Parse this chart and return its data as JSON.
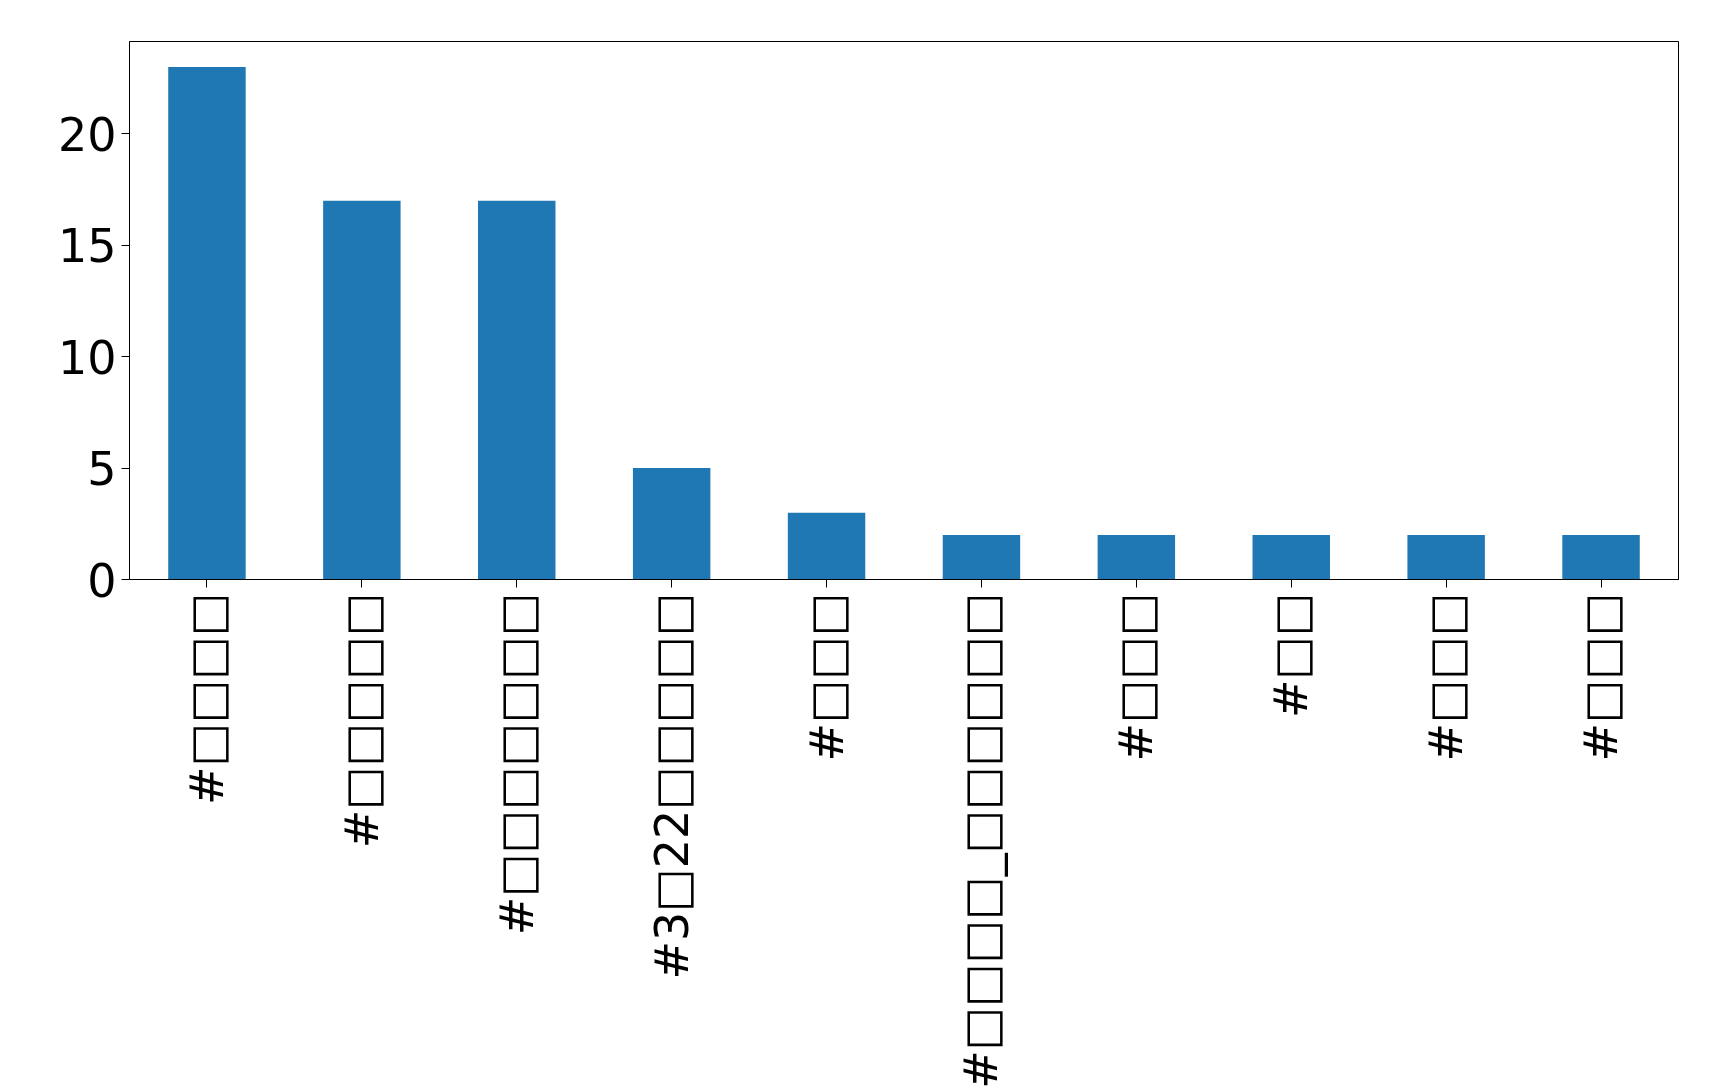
{
  "chart_data": {
    "type": "bar",
    "categories": [
      "#□□□□",
      "#□□□□□",
      "#□□□□□□□",
      "#3□22□□□□□",
      "#□□□",
      "#□□□□_□□□□□□",
      "#□□□",
      "#□□",
      "#□□□",
      "#□□□"
    ],
    "values": [
      23,
      17,
      17,
      5,
      3,
      2,
      2,
      2,
      2,
      2
    ],
    "color": "#1f77b4",
    "ylim": [
      0,
      24.15
    ],
    "yticks": [
      0,
      5,
      10,
      15,
      20
    ]
  }
}
